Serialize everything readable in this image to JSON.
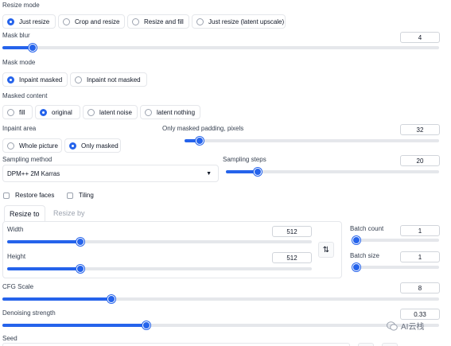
{
  "resize_mode": {
    "label": "Resize mode",
    "options": [
      "Just resize",
      "Crop and resize",
      "Resize and fill",
      "Just resize (latent upscale)"
    ],
    "selected": "Just resize"
  },
  "mask_blur": {
    "label": "Mask blur",
    "value": "4",
    "fraction": 0.07
  },
  "mask_mode": {
    "label": "Mask mode",
    "options": [
      "Inpaint masked",
      "Inpaint not masked"
    ],
    "selected": "Inpaint masked"
  },
  "masked_content": {
    "label": "Masked content",
    "options": [
      "fill",
      "original",
      "latent noise",
      "latent nothing"
    ],
    "selected": "original"
  },
  "inpaint_area": {
    "label": "Inpaint area",
    "options": [
      "Whole picture",
      "Only masked"
    ],
    "selected": "Only masked"
  },
  "only_masked_padding": {
    "label": "Only masked padding, pixels",
    "value": "32",
    "fraction": 0.06
  },
  "sampling_method": {
    "label": "Sampling method",
    "value": "DPM++ 2M Karras",
    "icon": "dropdown-caret"
  },
  "sampling_steps": {
    "label": "Sampling steps",
    "value": "20",
    "fraction": 0.15
  },
  "checkboxes": {
    "restore_faces": "Restore faces",
    "tiling": "Tiling"
  },
  "tabs": [
    "Resize to",
    "Resize by"
  ],
  "width": {
    "label": "Width",
    "value": "512",
    "fraction": 0.24
  },
  "height": {
    "label": "Height",
    "value": "512",
    "fraction": 0.24
  },
  "swap_icon": "swap-vertical-arrows",
  "batch_count": {
    "label": "Batch count",
    "value": "1",
    "fraction": 0.0
  },
  "batch_size": {
    "label": "Batch size",
    "value": "1",
    "fraction": 0.0
  },
  "cfg_scale": {
    "label": "CFG Scale",
    "value": "8",
    "fraction": 0.25
  },
  "denoising_strength": {
    "label": "Denoising strength",
    "value": "0.33",
    "fraction": 0.33
  },
  "seed": {
    "label": "Seed"
  },
  "watermark": {
    "text": "AI云栈",
    "icon": "wechat-icon"
  },
  "colors": {
    "accent": "#2563eb",
    "border": "#e5e7eb",
    "track": "#e5e7eb"
  }
}
